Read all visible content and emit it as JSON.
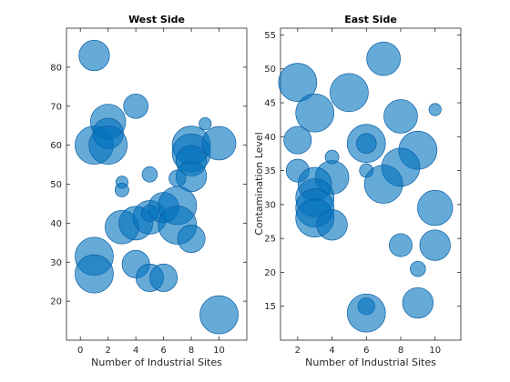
{
  "chart_data": [
    {
      "type": "scatter",
      "title": "West Side",
      "xlabel": "Number of Industrial Sites",
      "ylabel": "",
      "xlim": [
        -1,
        12
      ],
      "ylim": [
        10,
        90
      ],
      "xticks": [
        0,
        2,
        4,
        6,
        8,
        10
      ],
      "yticks": [
        20,
        30,
        40,
        50,
        60,
        70,
        80
      ],
      "grid": false,
      "color": "#0072bd",
      "points": [
        {
          "x": 1,
          "y": 83,
          "size": 20
        },
        {
          "x": 1,
          "y": 60,
          "size": 25
        },
        {
          "x": 2,
          "y": 66,
          "size": 23
        },
        {
          "x": 2,
          "y": 63,
          "size": 20
        },
        {
          "x": 2,
          "y": 60,
          "size": 25
        },
        {
          "x": 4,
          "y": 70,
          "size": 16
        },
        {
          "x": 9,
          "y": 65.5,
          "size": 8
        },
        {
          "x": 8,
          "y": 60,
          "size": 25
        },
        {
          "x": 8,
          "y": 58,
          "size": 25
        },
        {
          "x": 8,
          "y": 56,
          "size": 20
        },
        {
          "x": 8,
          "y": 52,
          "size": 20
        },
        {
          "x": 10,
          "y": 60.5,
          "size": 22
        },
        {
          "x": 5,
          "y": 52.5,
          "size": 10
        },
        {
          "x": 3,
          "y": 50.5,
          "size": 8
        },
        {
          "x": 3,
          "y": 48.5,
          "size": 9
        },
        {
          "x": 7,
          "y": 51.5,
          "size": 11
        },
        {
          "x": 3,
          "y": 39,
          "size": 22
        },
        {
          "x": 4,
          "y": 40,
          "size": 22
        },
        {
          "x": 5,
          "y": 41.5,
          "size": 22
        },
        {
          "x": 5,
          "y": 42.5,
          "size": 11
        },
        {
          "x": 6,
          "y": 44,
          "size": 20
        },
        {
          "x": 7,
          "y": 44.5,
          "size": 25
        },
        {
          "x": 7,
          "y": 39.5,
          "size": 25
        },
        {
          "x": 8,
          "y": 36,
          "size": 18
        },
        {
          "x": 1,
          "y": 31.5,
          "size": 25
        },
        {
          "x": 1,
          "y": 27,
          "size": 25
        },
        {
          "x": 4,
          "y": 29.5,
          "size": 18
        },
        {
          "x": 5,
          "y": 26,
          "size": 18
        },
        {
          "x": 6,
          "y": 26,
          "size": 18
        },
        {
          "x": 10,
          "y": 16.5,
          "size": 25
        }
      ]
    },
    {
      "type": "scatter",
      "title": "East Side",
      "xlabel": "Number of Industrial Sites",
      "ylabel": "Contamination Level",
      "xlim": [
        1,
        11.5
      ],
      "ylim": [
        10,
        56
      ],
      "xticks": [
        2,
        4,
        6,
        8,
        10
      ],
      "yticks": [
        15,
        20,
        25,
        30,
        35,
        40,
        45,
        50,
        55
      ],
      "grid": false,
      "color": "#0072bd",
      "points": [
        {
          "x": 2,
          "y": 48,
          "size": 25
        },
        {
          "x": 3,
          "y": 43.5,
          "size": 25
        },
        {
          "x": 5,
          "y": 46.5,
          "size": 25
        },
        {
          "x": 7,
          "y": 51.5,
          "size": 22
        },
        {
          "x": 8,
          "y": 43,
          "size": 22
        },
        {
          "x": 10,
          "y": 44,
          "size": 8
        },
        {
          "x": 2,
          "y": 39.5,
          "size": 18
        },
        {
          "x": 6,
          "y": 39,
          "size": 25
        },
        {
          "x": 6,
          "y": 39,
          "size": 13
        },
        {
          "x": 9,
          "y": 38,
          "size": 25
        },
        {
          "x": 8,
          "y": 35.5,
          "size": 25
        },
        {
          "x": 2,
          "y": 35,
          "size": 15
        },
        {
          "x": 4,
          "y": 37,
          "size": 9
        },
        {
          "x": 4,
          "y": 34,
          "size": 22
        },
        {
          "x": 6,
          "y": 35,
          "size": 9
        },
        {
          "x": 7,
          "y": 33,
          "size": 25
        },
        {
          "x": 3,
          "y": 33,
          "size": 22
        },
        {
          "x": 3,
          "y": 31,
          "size": 25
        },
        {
          "x": 3,
          "y": 29.5,
          "size": 25
        },
        {
          "x": 3,
          "y": 28,
          "size": 25
        },
        {
          "x": 4,
          "y": 27,
          "size": 20
        },
        {
          "x": 10,
          "y": 29.5,
          "size": 23
        },
        {
          "x": 10,
          "y": 24,
          "size": 20
        },
        {
          "x": 8,
          "y": 24,
          "size": 15
        },
        {
          "x": 9,
          "y": 20.5,
          "size": 10
        },
        {
          "x": 9,
          "y": 15.5,
          "size": 20
        },
        {
          "x": 6,
          "y": 15,
          "size": 11
        },
        {
          "x": 6,
          "y": 14,
          "size": 25
        }
      ]
    }
  ]
}
